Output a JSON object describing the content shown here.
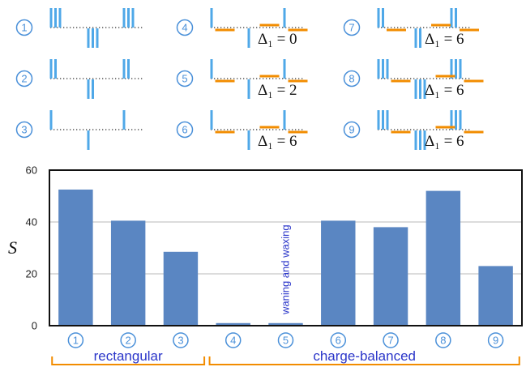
{
  "waveforms": [
    {
      "label": "1",
      "n_lines": 3,
      "orange": false,
      "delta": ""
    },
    {
      "label": "2",
      "n_lines": 2,
      "orange": false,
      "delta": ""
    },
    {
      "label": "3",
      "n_lines": 1,
      "orange": false,
      "delta": ""
    },
    {
      "label": "4",
      "n_lines": 1,
      "orange": true,
      "delta": "Δ₁ = 0"
    },
    {
      "label": "5",
      "n_lines": 1,
      "orange": true,
      "delta": "Δ₁ = 2"
    },
    {
      "label": "6",
      "n_lines": 1,
      "orange": true,
      "delta": "Δ₁ = 6"
    },
    {
      "label": "7",
      "n_lines": 2,
      "orange": true,
      "delta": "Δ₁ = 6"
    },
    {
      "label": "8",
      "n_lines": 3,
      "orange": true,
      "delta": "Δ₁ = 6"
    },
    {
      "label": "9",
      "n_lines": 3,
      "orange": true,
      "delta": "Δ₁ = 6"
    }
  ],
  "colors": {
    "blue": "#4fa8e8",
    "orange": "#f28c00",
    "bar": "#5a86c2",
    "circle": "#4a90d9",
    "group_text": "#2a35c9",
    "bracket": "#f28c00"
  },
  "chart_data": {
    "type": "bar",
    "categories": [
      "1",
      "2",
      "3",
      "4",
      "5",
      "6",
      "7",
      "8",
      "9"
    ],
    "values": [
      52.5,
      40.5,
      28.5,
      1,
      1,
      40.5,
      38,
      52,
      23
    ],
    "ylabel": "S",
    "ylim": [
      0,
      60
    ],
    "yticks": [
      0,
      20,
      40,
      60
    ],
    "grid": true,
    "annotation": "waning and waxing",
    "groups": [
      {
        "label": "rectangular",
        "range": [
          "1",
          "3"
        ]
      },
      {
        "label": "charge-balanced",
        "range": [
          "4",
          "9"
        ]
      }
    ]
  }
}
